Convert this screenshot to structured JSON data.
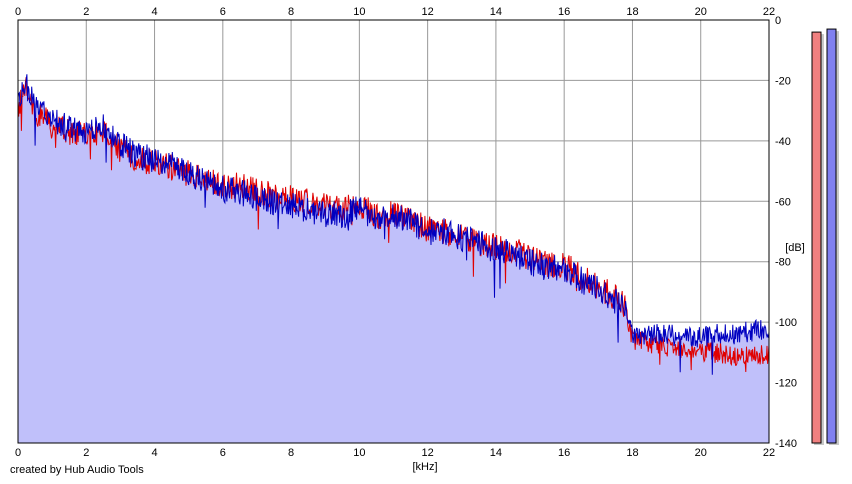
{
  "chart_data": {
    "type": "area",
    "xlabel": "[kHz]",
    "ylabel": "[dB]",
    "xlim": [
      0,
      22
    ],
    "ylim": [
      -140,
      0
    ],
    "x_ticks": [
      0,
      2,
      4,
      6,
      8,
      10,
      12,
      14,
      16,
      18,
      20,
      22
    ],
    "y_ticks": [
      0,
      -20,
      -40,
      -60,
      -80,
      -100,
      -120,
      -140
    ],
    "grid": true,
    "series": [
      {
        "color": "#e00000",
        "x": [
          0,
          0.2,
          0.5,
          1,
          1.5,
          2,
          2.5,
          3,
          3.5,
          4,
          4.5,
          5,
          5.5,
          6,
          6.5,
          7,
          7.5,
          8,
          8.5,
          9,
          9.5,
          10,
          10.5,
          11,
          11.5,
          12,
          12.5,
          13,
          13.5,
          14,
          14.5,
          15,
          15.5,
          16,
          16.5,
          17,
          17.5,
          17.8,
          18,
          18.5,
          19,
          19.5,
          20,
          20.5,
          21,
          21.5,
          22
        ],
        "y": [
          -30,
          -22,
          -30,
          -35,
          -37,
          -38,
          -37,
          -43,
          -46,
          -47,
          -49,
          -51,
          -53,
          -55,
          -55,
          -57,
          -58,
          -59,
          -60,
          -62,
          -63,
          -61,
          -65,
          -64,
          -66,
          -69,
          -70,
          -72,
          -74,
          -75,
          -76,
          -79,
          -81,
          -81,
          -85,
          -88,
          -92,
          -95,
          -106,
          -107,
          -108,
          -109,
          -110,
          -110,
          -111,
          -110,
          -111
        ]
      },
      {
        "color": "#0000c0",
        "x": [
          0,
          0.2,
          0.5,
          1,
          1.5,
          2,
          2.5,
          3,
          3.5,
          4,
          4.5,
          5,
          5.5,
          6,
          6.5,
          7,
          7.5,
          8,
          8.5,
          9,
          9.5,
          10,
          10.5,
          11,
          11.5,
          12,
          12.5,
          13,
          13.5,
          14,
          14.5,
          15,
          15.5,
          16,
          16.5,
          17,
          17.5,
          17.8,
          18,
          18.5,
          19,
          19.5,
          20,
          20.5,
          21,
          21.5,
          22
        ],
        "y": [
          -28,
          -21,
          -28,
          -33,
          -36,
          -37,
          -35,
          -41,
          -45,
          -46,
          -48,
          -51,
          -54,
          -56,
          -57,
          -59,
          -60,
          -61,
          -63,
          -64,
          -65,
          -62,
          -66,
          -65,
          -67,
          -70,
          -70,
          -72,
          -74,
          -76,
          -77,
          -80,
          -82,
          -82,
          -86,
          -89,
          -93,
          -96,
          -104,
          -104,
          -104,
          -105,
          -105,
          -104,
          -104,
          -103,
          -102
        ]
      }
    ],
    "level_meters": [
      {
        "color": "#f08080",
        "level_db": -4
      },
      {
        "color": "#8080f0",
        "level_db": -3
      }
    ],
    "fill_color": "#c0c0fa"
  },
  "credit_text": "created by Hub Audio Tools"
}
